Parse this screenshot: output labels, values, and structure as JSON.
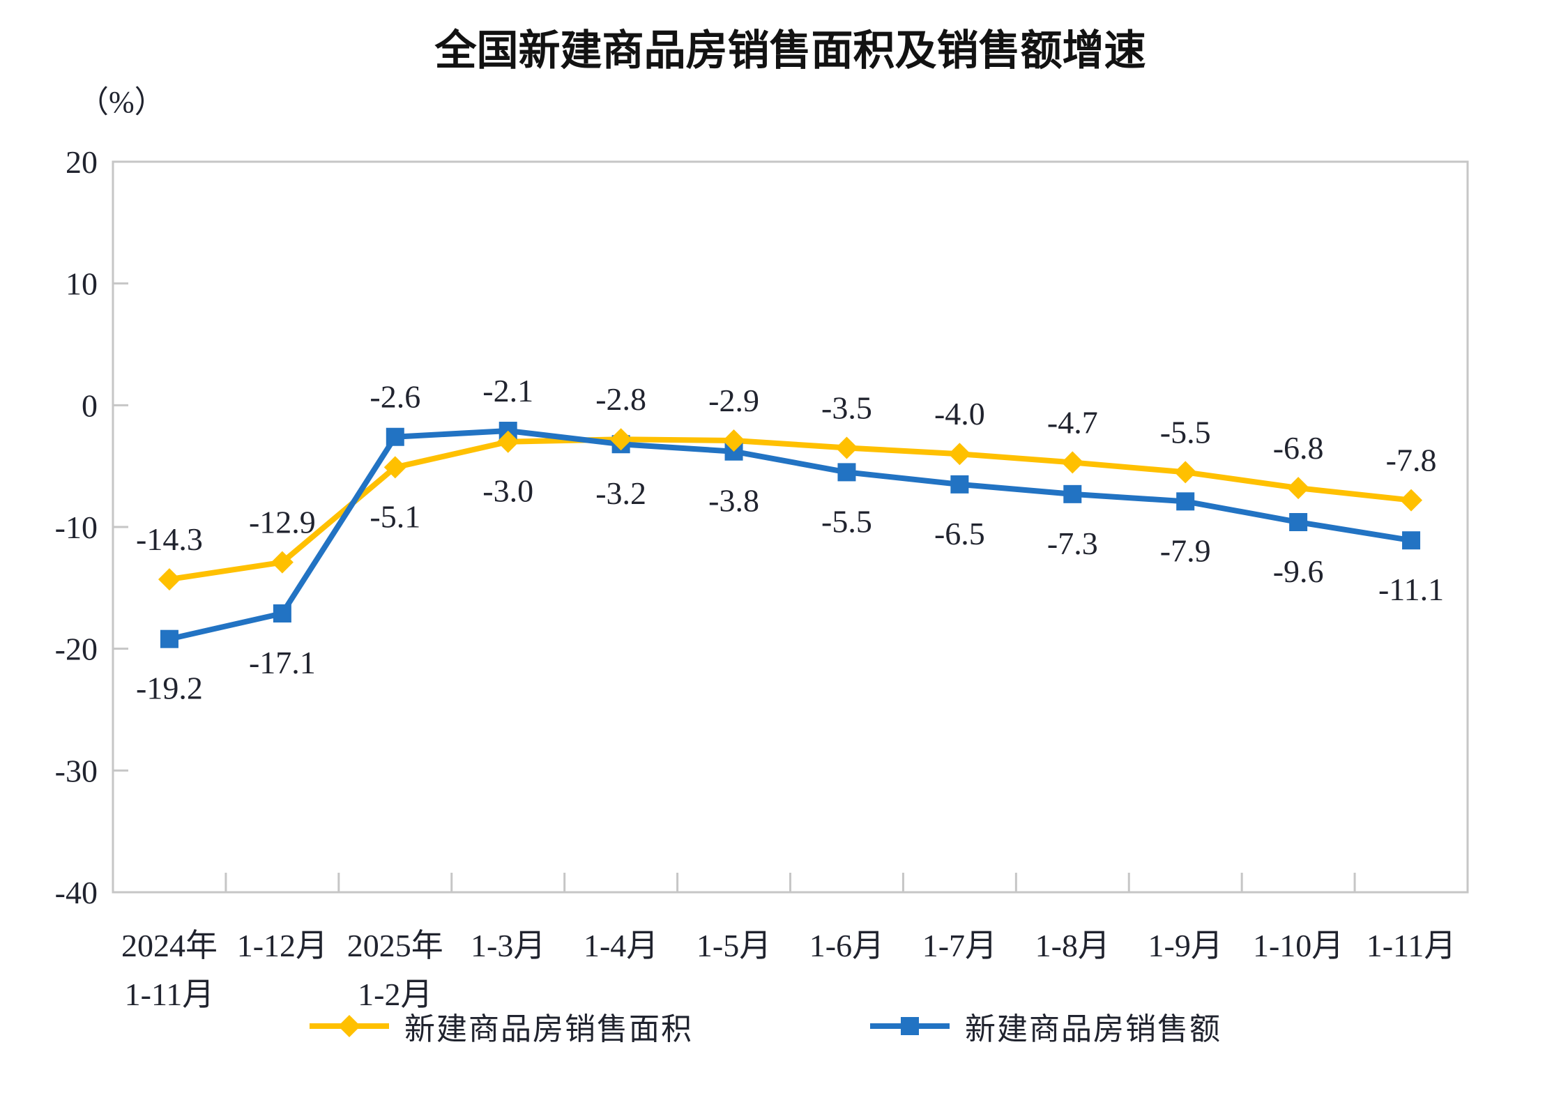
{
  "chart_data": {
    "type": "line",
    "title": "全国新建商品房销售面积及销售额增速",
    "unit_label": "（%）",
    "xlabel": "",
    "ylabel": "（%）",
    "ylim": [
      -40,
      20
    ],
    "yticks": [
      20,
      10,
      0,
      -10,
      -20,
      -30,
      -40
    ],
    "grid": false,
    "legend_position": "bottom",
    "categories": [
      [
        "2024年",
        "1-11月"
      ],
      [
        "1-12月"
      ],
      [
        "2025年",
        "1-2月"
      ],
      [
        "1-3月"
      ],
      [
        "1-4月"
      ],
      [
        "1-5月"
      ],
      [
        "1-6月"
      ],
      [
        "1-7月"
      ],
      [
        "1-8月"
      ],
      [
        "1-9月"
      ],
      [
        "1-10月"
      ],
      [
        "1-11月"
      ]
    ],
    "series": [
      {
        "name": "新建商品房销售面积",
        "marker": "diamond",
        "color": "#FFC000",
        "values": [
          -14.3,
          -12.9,
          -5.1,
          -3.0,
          -2.8,
          -2.9,
          -3.5,
          -4.0,
          -4.7,
          -5.5,
          -6.8,
          -7.8
        ]
      },
      {
        "name": "新建商品房销售额",
        "marker": "square",
        "color": "#2273C3",
        "values": [
          -19.2,
          -17.1,
          -2.6,
          -2.1,
          -3.2,
          -3.8,
          -5.5,
          -6.5,
          -7.3,
          -7.9,
          -9.6,
          -11.1
        ]
      }
    ],
    "colors": {
      "axis": "#C6C6C6",
      "label_text": "#20232E",
      "title_text": "#121212"
    }
  }
}
